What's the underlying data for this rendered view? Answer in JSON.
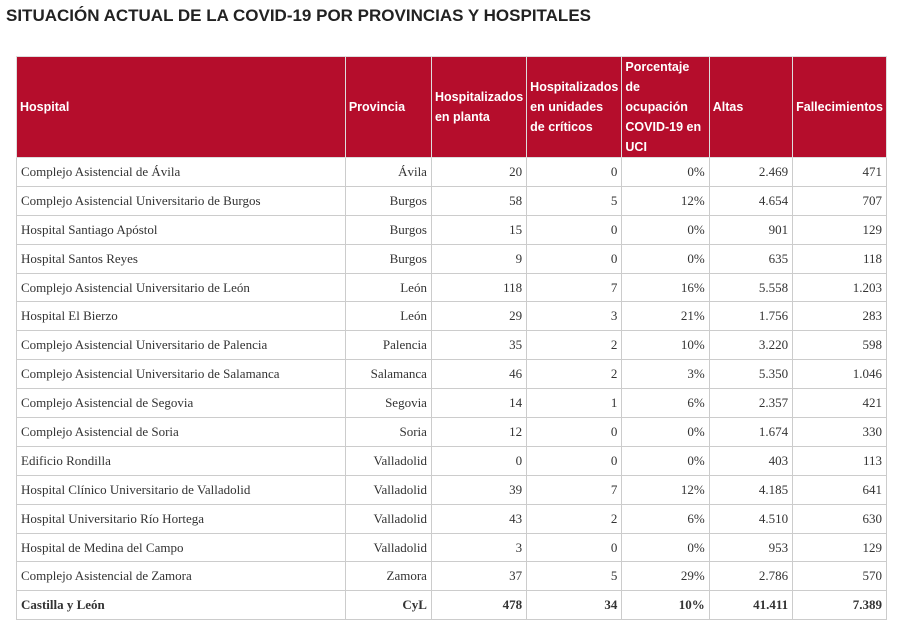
{
  "title": "SITUACIÓN ACTUAL DE LA COVID-19 POR PROVINCIAS Y HOSPITALES",
  "table": {
    "header": [
      "Hospital",
      "Provincia",
      "Hospitalizados en planta",
      "Hospitalizados en unidades de críticos",
      "Porcentaje de ocupación COVID-19 en UCI",
      "Altas",
      "Fallecimientos"
    ],
    "rows": [
      [
        "Complejo Asistencial de Ávila",
        "Ávila",
        "20",
        "0",
        "0%",
        "2.469",
        "471"
      ],
      [
        "Complejo Asistencial Universitario de Burgos",
        "Burgos",
        "58",
        "5",
        "12%",
        "4.654",
        "707"
      ],
      [
        "Hospital Santiago Apóstol",
        "Burgos",
        "15",
        "0",
        "0%",
        "901",
        "129"
      ],
      [
        "Hospital Santos Reyes",
        "Burgos",
        "9",
        "0",
        "0%",
        "635",
        "118"
      ],
      [
        "Complejo Asistencial Universitario de León",
        "León",
        "118",
        "7",
        "16%",
        "5.558",
        "1.203"
      ],
      [
        "Hospital El Bierzo",
        "León",
        "29",
        "3",
        "21%",
        "1.756",
        "283"
      ],
      [
        "Complejo Asistencial Universitario de Palencia",
        "Palencia",
        "35",
        "2",
        "10%",
        "3.220",
        "598"
      ],
      [
        "Complejo Asistencial Universitario de Salamanca",
        "Salamanca",
        "46",
        "2",
        "3%",
        "5.350",
        "1.046"
      ],
      [
        "Complejo Asistencial de Segovia",
        "Segovia",
        "14",
        "1",
        "6%",
        "2.357",
        "421"
      ],
      [
        "Complejo Asistencial de Soria",
        "Soria",
        "12",
        "0",
        "0%",
        "1.674",
        "330"
      ],
      [
        "Edificio Rondilla",
        "Valladolid",
        "0",
        "0",
        "0%",
        "403",
        "113"
      ],
      [
        "Hospital Clínico Universitario de Valladolid",
        "Valladolid",
        "39",
        "7",
        "12%",
        "4.185",
        "641"
      ],
      [
        "Hospital Universitario Río Hortega",
        "Valladolid",
        "43",
        "2",
        "6%",
        "4.510",
        "630"
      ],
      [
        "Hospital de Medina del Campo",
        "Valladolid",
        "3",
        "0",
        "0%",
        "953",
        "129"
      ],
      [
        "Complejo Asistencial de Zamora",
        "Zamora",
        "37",
        "5",
        "29%",
        "2.786",
        "570"
      ]
    ],
    "total": [
      "Castilla y León",
      "CyL",
      "478",
      "34",
      "10%",
      "41.411",
      "7.389"
    ]
  }
}
